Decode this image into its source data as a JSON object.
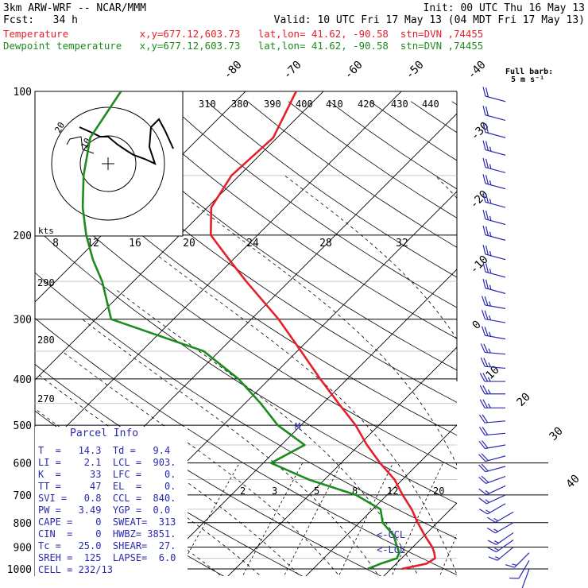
{
  "header": {
    "model": "3km ARW-WRF -- NCAR/MMM",
    "init": "Init: 00 UTC Thu 16 May 13",
    "fcst": "Fcst:   34 h",
    "valid": "Valid: 10 UTC Fri 17 May 13 (04 MDT Fri 17 May 13)",
    "temp_line": "Temperature            x,y=677.12,603.73   lat,lon= 41.62, -90.58  stn=DVN ,74455",
    "dew_line": "Dewpoint temperature   x,y=677.12,603.73   lat,lon= 41.62, -90.58  stn=DVN ,74455"
  },
  "colors": {
    "temperature": "#e4202a",
    "dewpoint": "#1d8b1d",
    "parcel": "#2a2ab0",
    "wind": "#2a2ab0"
  },
  "barb_label": [
    "Full barb:",
    "5 m s⁻¹"
  ],
  "hodograph": {
    "kts_label": "kts",
    "ring_labels": [
      "20",
      "10"
    ]
  },
  "parcel_info": {
    "title": "Parcel Info",
    "rows": [
      "T  =   14.3  Td =   9.4",
      "LI =    2.1  LCL =  903.",
      "K  =     33  LFC =    0.",
      "TT =     47  EL  =    0.",
      "SVI =   0.8  CCL =  840.",
      "PW =   3.49  YGP =  0.0",
      "CAPE =    0  SWEAT=  313",
      "CIN  =    0  HWBZ= 3851.",
      "Tc =   25.0  SHEAR=  27.",
      "SREH =  125  LAPSE=  6.0",
      "CELL = 232/13"
    ]
  },
  "markers": {
    "ccl": "<-CCL",
    "lcl": "<-LCL",
    "m": "M"
  },
  "chart_data": {
    "type": "line",
    "pressure_axis": {
      "labels": [
        "100",
        "200",
        "300",
        "400",
        "500",
        "600",
        "700",
        "800",
        "900",
        "1000"
      ]
    },
    "isotherm_labels": [
      "-80",
      "-70",
      "-60",
      "-50",
      "-40",
      "-30",
      "-20",
      "-10",
      "0",
      "10",
      "20",
      "30",
      "40"
    ],
    "theta_labels": [
      "310",
      "380",
      "390",
      "400",
      "410",
      "420",
      "430",
      "440"
    ],
    "dry_adiabat_labels": [
      "290",
      "280",
      "270"
    ],
    "mixing_ratio_labels": [
      "2",
      "3",
      "5",
      "8",
      "12",
      "20"
    ],
    "hodo_axis_labels": [
      "8",
      "12",
      "16",
      "20",
      "24",
      "28",
      "32"
    ],
    "series": [
      {
        "name": "Temperature",
        "points": [
          [
            1000,
            11.4
          ],
          [
            975,
            13.9
          ],
          [
            950,
            14.3
          ],
          [
            925,
            13.5
          ],
          [
            900,
            12.5
          ],
          [
            850,
            10.0
          ],
          [
            800,
            7.5
          ],
          [
            750,
            5.0
          ],
          [
            700,
            2.0
          ],
          [
            650,
            -1.0
          ],
          [
            600,
            -5.0
          ],
          [
            550,
            -9.0
          ],
          [
            500,
            -13.0
          ],
          [
            450,
            -18.0
          ],
          [
            400,
            -23.5
          ],
          [
            350,
            -29.5
          ],
          [
            300,
            -36.5
          ],
          [
            250,
            -45.5
          ],
          [
            225,
            -50.5
          ],
          [
            200,
            -56.0
          ],
          [
            175,
            -59.5
          ],
          [
            150,
            -61.0
          ],
          [
            125,
            -60.5
          ],
          [
            100,
            -63.5
          ]
        ]
      },
      {
        "name": "Dewpoint temperature",
        "points": [
          [
            1000,
            7.0
          ],
          [
            975,
            8.0
          ],
          [
            950,
            9.4
          ],
          [
            925,
            9.0
          ],
          [
            900,
            8.0
          ],
          [
            850,
            6.0
          ],
          [
            800,
            3.0
          ],
          [
            750,
            1.0
          ],
          [
            700,
            -4.0
          ],
          [
            650,
            -12.0
          ],
          [
            600,
            -19.0
          ],
          [
            550,
            -17.0
          ],
          [
            500,
            -23.0
          ],
          [
            450,
            -28.0
          ],
          [
            400,
            -34.0
          ],
          [
            350,
            -42.0
          ],
          [
            300,
            -58.0
          ],
          [
            250,
            -64.0
          ],
          [
            225,
            -68.0
          ],
          [
            200,
            -72.0
          ],
          [
            175,
            -76.0
          ],
          [
            150,
            -80.0
          ],
          [
            125,
            -84.0
          ],
          [
            100,
            -86.0
          ]
        ]
      }
    ],
    "wind_profile": [
      {
        "p": 1000,
        "spd": 10,
        "dir": 200
      },
      {
        "p": 960,
        "spd": 12,
        "dir": 210
      },
      {
        "p": 925,
        "spd": 15,
        "dir": 225
      },
      {
        "p": 900,
        "spd": 15,
        "dir": 230
      },
      {
        "p": 870,
        "spd": 15,
        "dir": 235
      },
      {
        "p": 840,
        "spd": 15,
        "dir": 235
      },
      {
        "p": 800,
        "spd": 15,
        "dir": 240
      },
      {
        "p": 760,
        "spd": 15,
        "dir": 240
      },
      {
        "p": 730,
        "spd": 15,
        "dir": 240
      },
      {
        "p": 700,
        "spd": 15,
        "dir": 245
      },
      {
        "p": 670,
        "spd": 15,
        "dir": 245
      },
      {
        "p": 640,
        "spd": 20,
        "dir": 250
      },
      {
        "p": 610,
        "spd": 20,
        "dir": 255
      },
      {
        "p": 580,
        "spd": 20,
        "dir": 255
      },
      {
        "p": 550,
        "spd": 20,
        "dir": 260
      },
      {
        "p": 520,
        "spd": 20,
        "dir": 265
      },
      {
        "p": 490,
        "spd": 20,
        "dir": 265
      },
      {
        "p": 460,
        "spd": 25,
        "dir": 270
      },
      {
        "p": 430,
        "spd": 25,
        "dir": 270
      },
      {
        "p": 405,
        "spd": 25,
        "dir": 270
      },
      {
        "p": 380,
        "spd": 25,
        "dir": 275
      },
      {
        "p": 355,
        "spd": 25,
        "dir": 275
      },
      {
        "p": 330,
        "spd": 25,
        "dir": 280
      },
      {
        "p": 305,
        "spd": 25,
        "dir": 280
      },
      {
        "p": 285,
        "spd": 25,
        "dir": 280
      },
      {
        "p": 265,
        "spd": 25,
        "dir": 285
      },
      {
        "p": 245,
        "spd": 25,
        "dir": 285
      },
      {
        "p": 225,
        "spd": 25,
        "dir": 285
      },
      {
        "p": 205,
        "spd": 25,
        "dir": 285
      },
      {
        "p": 190,
        "spd": 25,
        "dir": 285
      },
      {
        "p": 175,
        "spd": 25,
        "dir": 285
      },
      {
        "p": 160,
        "spd": 25,
        "dir": 285
      },
      {
        "p": 148,
        "spd": 25,
        "dir": 285
      },
      {
        "p": 136,
        "spd": 25,
        "dir": 285
      },
      {
        "p": 125,
        "spd": 20,
        "dir": 285
      },
      {
        "p": 115,
        "spd": 20,
        "dir": 285
      },
      {
        "p": 105,
        "spd": 20,
        "dir": 285
      }
    ]
  }
}
